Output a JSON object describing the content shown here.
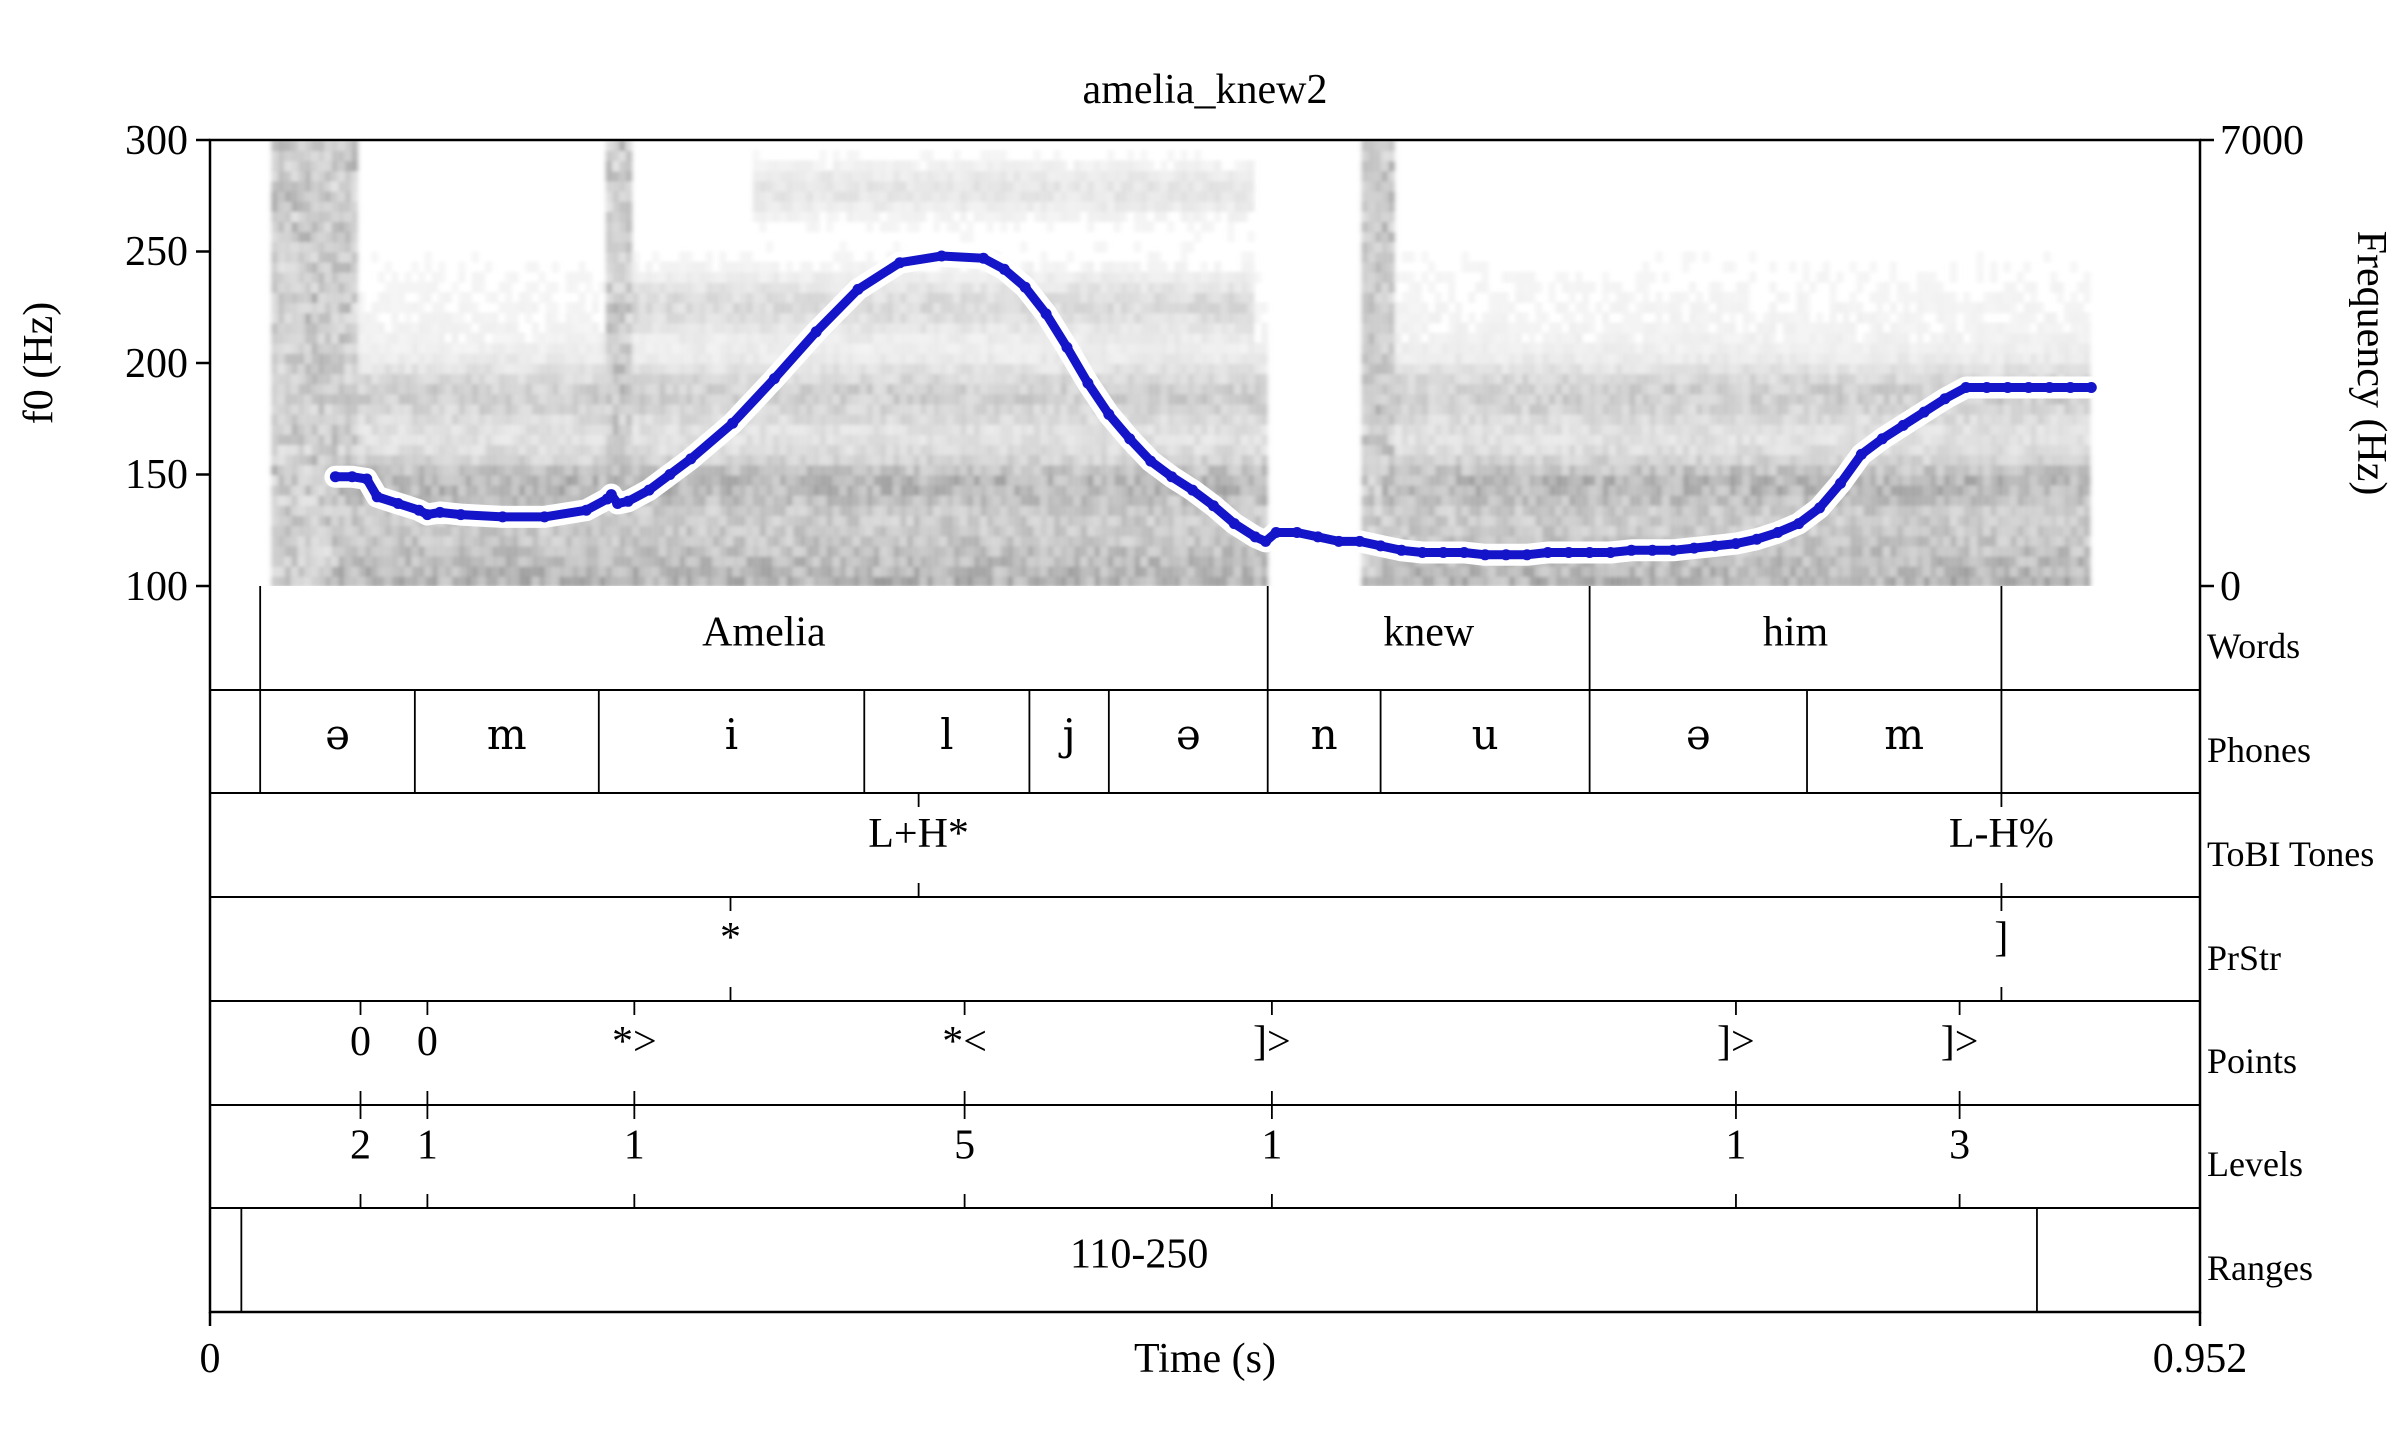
{
  "title": "amelia_knew2",
  "axes": {
    "f0_label": "f0 (Hz)",
    "f0_ticks": [
      "300",
      "250",
      "200",
      "150",
      "100"
    ],
    "freq_label": "Frequency (Hz)",
    "freq_top": "7000",
    "freq_bottom": "0",
    "time_label": "Time (s)",
    "time_start": "0",
    "time_end": "0.952"
  },
  "tier_names": [
    "Words",
    "Phones",
    "ToBI Tones",
    "PrStr",
    "Points",
    "Levels",
    "Ranges"
  ],
  "chart_data": {
    "type": "line",
    "title": "amelia_knew2",
    "xlabel": "Time (s)",
    "ylabel": "f0 (Hz)",
    "y2label": "Frequency (Hz)",
    "xlim": [
      0,
      0.952
    ],
    "ylim": [
      100,
      300
    ],
    "y2lim": [
      0,
      7000
    ],
    "background": "spectrogram (grayscale)",
    "line_color": "#1414c8",
    "series": [
      {
        "x": [
          0.06,
          0.068,
          0.075,
          0.08,
          0.09,
          0.1,
          0.104,
          0.11,
          0.12,
          0.14,
          0.16,
          0.18,
          0.19,
          0.192,
          0.195,
          0.2,
          0.21,
          0.22,
          0.23,
          0.25,
          0.27,
          0.29,
          0.31,
          0.33,
          0.35,
          0.37,
          0.38,
          0.39,
          0.4,
          0.41,
          0.42,
          0.43,
          0.44,
          0.45,
          0.46,
          0.47,
          0.48,
          0.49,
          0.5,
          0.505,
          0.51,
          0.52,
          0.53,
          0.54,
          0.55,
          0.56,
          0.57,
          0.58,
          0.59,
          0.6,
          0.61,
          0.62,
          0.63,
          0.64,
          0.65,
          0.66,
          0.67,
          0.68,
          0.69,
          0.7,
          0.71,
          0.72,
          0.73,
          0.74,
          0.75,
          0.76,
          0.77,
          0.78,
          0.79,
          0.8,
          0.81,
          0.82,
          0.83,
          0.84,
          0.85,
          0.86,
          0.87,
          0.88,
          0.89,
          0.9
        ],
        "y": [
          149,
          149,
          148,
          140,
          137,
          134,
          132,
          133,
          132,
          131,
          131,
          134,
          139,
          141,
          137,
          138,
          143,
          150,
          157,
          173,
          193,
          214,
          233,
          245,
          248,
          247,
          242,
          234,
          222,
          207,
          191,
          177,
          166,
          156,
          149,
          143,
          136,
          128,
          122,
          120,
          124,
          124,
          122,
          120,
          120,
          118,
          116,
          115,
          115,
          115,
          114,
          114,
          114,
          115,
          115,
          115,
          115,
          116,
          116,
          116,
          117,
          118,
          119,
          121,
          124,
          128,
          135,
          146,
          159,
          166,
          172,
          178,
          184,
          189,
          189,
          189,
          189,
          189,
          189,
          189
        ]
      }
    ]
  },
  "tiers": {
    "words": [
      {
        "label": "",
        "start": 0,
        "end": 0.024
      },
      {
        "label": "Amelia",
        "start": 0.024,
        "end": 0.506
      },
      {
        "label": "knew",
        "start": 0.506,
        "end": 0.66
      },
      {
        "label": "him",
        "start": 0.66,
        "end": 0.857
      },
      {
        "label": "",
        "start": 0.857,
        "end": 0.952
      }
    ],
    "phones": [
      {
        "label": "",
        "start": 0,
        "end": 0.024
      },
      {
        "label": "ə",
        "start": 0.024,
        "end": 0.098
      },
      {
        "label": "m",
        "start": 0.098,
        "end": 0.186
      },
      {
        "label": "i",
        "start": 0.186,
        "end": 0.313
      },
      {
        "label": "l",
        "start": 0.313,
        "end": 0.392
      },
      {
        "label": "j",
        "start": 0.392,
        "end": 0.43
      },
      {
        "label": "ə",
        "start": 0.43,
        "end": 0.506
      },
      {
        "label": "n",
        "start": 0.506,
        "end": 0.56
      },
      {
        "label": "u",
        "start": 0.56,
        "end": 0.66
      },
      {
        "label": "ə",
        "start": 0.66,
        "end": 0.764
      },
      {
        "label": "m",
        "start": 0.764,
        "end": 0.857
      },
      {
        "label": "",
        "start": 0.857,
        "end": 0.952
      }
    ],
    "tobi_tones": [
      {
        "label": "L+H*",
        "time": 0.339
      },
      {
        "label": "L-H%",
        "time": 0.857
      }
    ],
    "prstr": [
      {
        "label": "*",
        "time": 0.249
      },
      {
        "label": "]",
        "time": 0.857
      }
    ],
    "points": [
      {
        "label": "0",
        "time": 0.072
      },
      {
        "label": "0",
        "time": 0.104
      },
      {
        "label": "*>",
        "time": 0.203
      },
      {
        "label": "*<",
        "time": 0.361
      },
      {
        "label": "]>",
        "time": 0.508
      },
      {
        "label": "]>",
        "time": 0.73
      },
      {
        "label": "]>",
        "time": 0.837
      }
    ],
    "levels": [
      {
        "label": "2",
        "time": 0.072
      },
      {
        "label": "1",
        "time": 0.104
      },
      {
        "label": "1",
        "time": 0.203
      },
      {
        "label": "5",
        "time": 0.361
      },
      {
        "label": "1",
        "time": 0.508
      },
      {
        "label": "1",
        "time": 0.73
      },
      {
        "label": "3",
        "time": 0.837
      }
    ],
    "ranges": [
      {
        "label": "",
        "start": 0,
        "end": 0.015
      },
      {
        "label": "110-250",
        "start": 0.015,
        "end": 0.874
      },
      {
        "label": "",
        "start": 0.874,
        "end": 0.952
      }
    ]
  }
}
